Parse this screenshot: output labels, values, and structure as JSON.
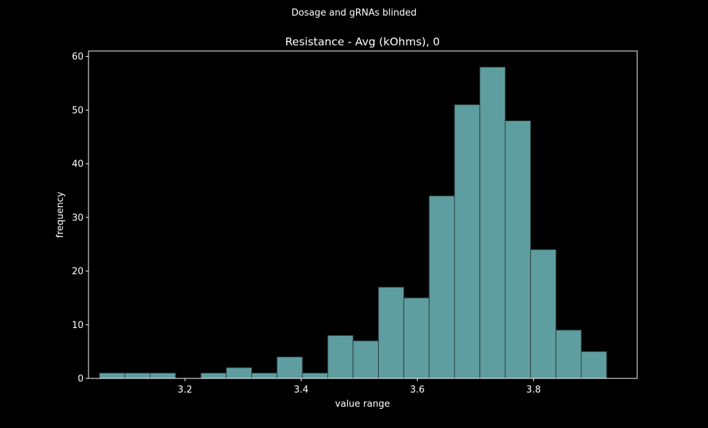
{
  "suptitle": "Dosage and gRNAs blinded",
  "chart_data": {
    "type": "bar",
    "title": "Resistance - Avg (kOhms), 0",
    "xlabel": "value range",
    "ylabel": "frequency",
    "xlim": [
      3.034,
      3.9785
    ],
    "ylim": [
      0,
      61
    ],
    "xticks": [
      3.2,
      3.4,
      3.6,
      3.8
    ],
    "xtick_labels": [
      "3.2",
      "3.4",
      "3.6",
      "3.8"
    ],
    "yticks": [
      0,
      10,
      20,
      30,
      40,
      50,
      60
    ],
    "ytick_labels": [
      "0",
      "10",
      "20",
      "30",
      "40",
      "50",
      "60"
    ],
    "bin_width": 0.04365,
    "bins": [
      {
        "start": 3.0529,
        "value": 1
      },
      {
        "start": 3.0966,
        "value": 1
      },
      {
        "start": 3.1402,
        "value": 1
      },
      {
        "start": 3.1839,
        "value": 0
      },
      {
        "start": 3.2275,
        "value": 1
      },
      {
        "start": 3.2712,
        "value": 2
      },
      {
        "start": 3.3148,
        "value": 1
      },
      {
        "start": 3.3585,
        "value": 4
      },
      {
        "start": 3.4021,
        "value": 1
      },
      {
        "start": 3.4458,
        "value": 8
      },
      {
        "start": 3.4894,
        "value": 7
      },
      {
        "start": 3.5331,
        "value": 17
      },
      {
        "start": 3.5767,
        "value": 15
      },
      {
        "start": 3.6204,
        "value": 34
      },
      {
        "start": 3.664,
        "value": 51
      },
      {
        "start": 3.7077,
        "value": 58
      },
      {
        "start": 3.7513,
        "value": 48
      },
      {
        "start": 3.795,
        "value": 24
      },
      {
        "start": 3.8386,
        "value": 9
      },
      {
        "start": 3.8823,
        "value": 5
      }
    ],
    "grid": false,
    "legend": "none",
    "colors": {
      "background": "#000000",
      "bar_fill": "#5f9ea0",
      "bar_edge": "#2a3f40",
      "axes": "#ffffff",
      "text": "#ffffff"
    }
  }
}
